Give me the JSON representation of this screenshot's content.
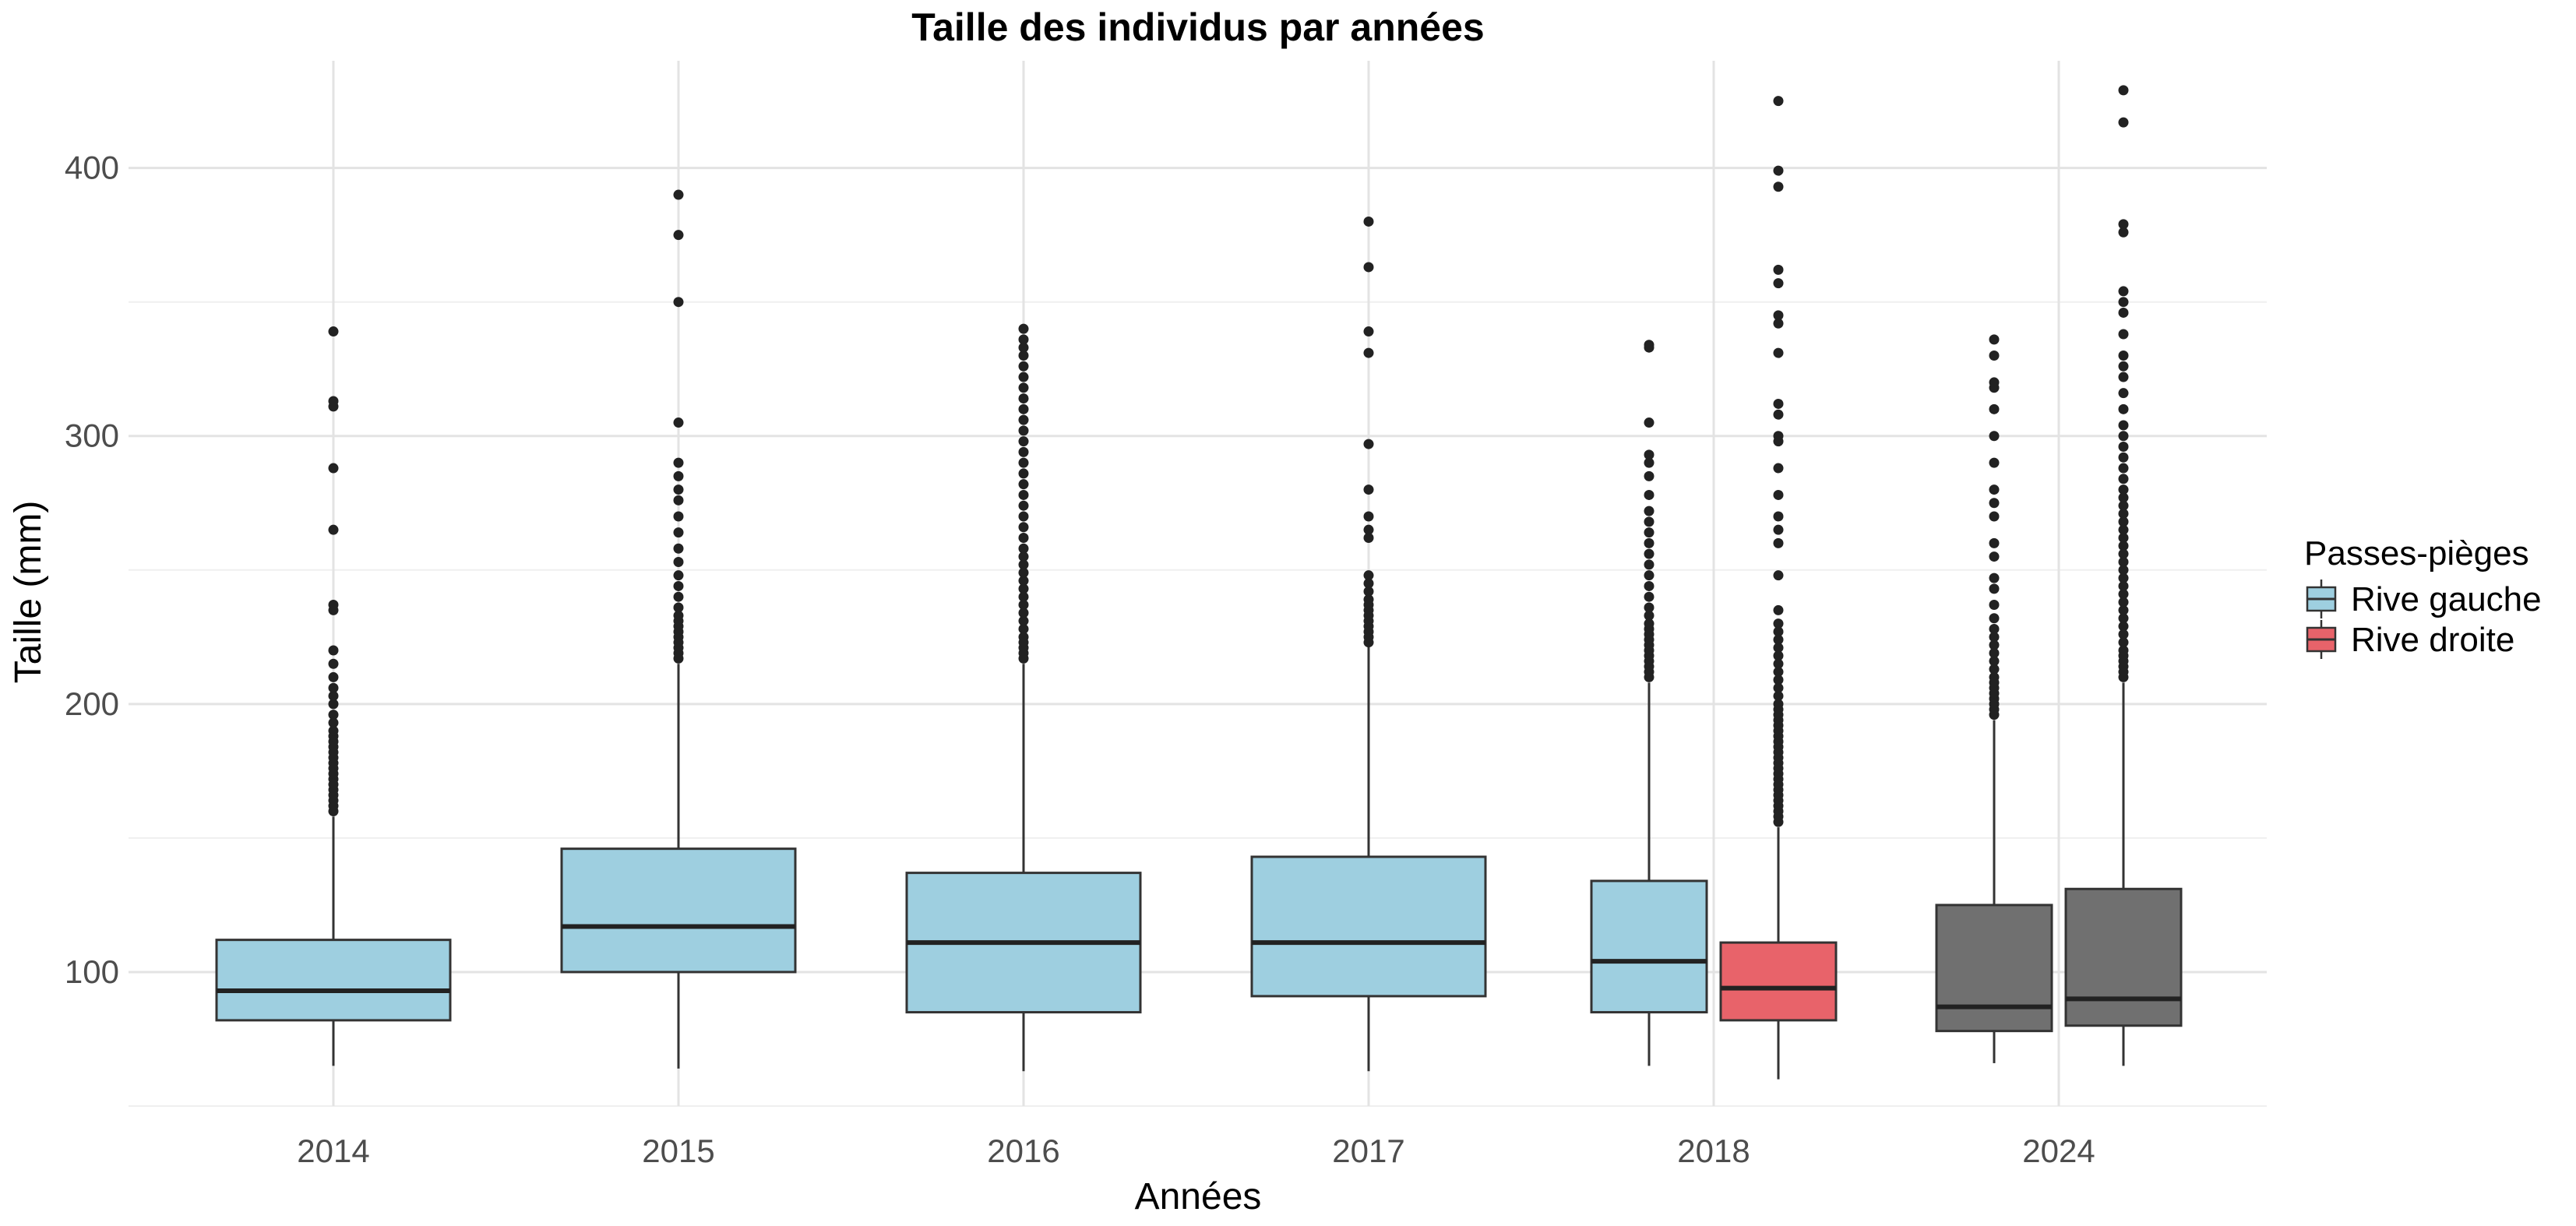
{
  "chart_data": {
    "type": "boxplot",
    "title": "Taille des individus par années",
    "xlabel": "Années",
    "ylabel": "Taille (mm)",
    "ylim": [
      50,
      440
    ],
    "yticks": [
      100,
      200,
      300,
      400
    ],
    "grid": true,
    "categories": [
      "2014",
      "2015",
      "2016",
      "2017",
      "2018",
      "2024"
    ],
    "legend": {
      "title": "Passes-pièges",
      "position": "right",
      "entries": [
        {
          "label": "Rive gauche",
          "color": "#9ecfe0"
        },
        {
          "label": "Rive droite",
          "color": "#e8636a"
        }
      ]
    },
    "colors": {
      "Rive gauche": "#9ecfe0",
      "Rive droite": "#e8636a",
      "NA": "#707070"
    },
    "boxes": [
      {
        "category": "2014",
        "group": "Rive gauche",
        "min": 65,
        "q1": 82,
        "median": 93,
        "q3": 112,
        "max": 158,
        "outliers": [
          160,
          162,
          164,
          166,
          168,
          170,
          172,
          174,
          176,
          178,
          180,
          182,
          184,
          186,
          188,
          190,
          193,
          196,
          200,
          203,
          206,
          210,
          215,
          220,
          235,
          237,
          265,
          288,
          311,
          313,
          339
        ]
      },
      {
        "category": "2015",
        "group": "Rive gauche",
        "min": 64,
        "q1": 100,
        "median": 117,
        "q3": 146,
        "max": 215,
        "outliers": [
          217,
          219,
          221,
          223,
          225,
          227,
          229,
          231,
          233,
          236,
          240,
          244,
          248,
          253,
          258,
          264,
          270,
          276,
          280,
          285,
          290,
          305,
          350,
          375,
          390
        ]
      },
      {
        "category": "2016",
        "group": "Rive gauche",
        "min": 63,
        "q1": 85,
        "median": 111,
        "q3": 137,
        "max": 215,
        "outliers": [
          217,
          219,
          221,
          223,
          225,
          228,
          231,
          234,
          237,
          240,
          243,
          246,
          249,
          252,
          255,
          258,
          262,
          266,
          270,
          274,
          278,
          282,
          286,
          290,
          294,
          298,
          302,
          306,
          310,
          314,
          318,
          322,
          326,
          330,
          333,
          336,
          340
        ]
      },
      {
        "category": "2017",
        "group": "Rive gauche",
        "min": 63,
        "q1": 91,
        "median": 111,
        "q3": 143,
        "max": 222,
        "outliers": [
          223,
          225,
          227,
          229,
          231,
          233,
          235,
          237,
          239,
          242,
          245,
          248,
          262,
          265,
          270,
          280,
          297,
          331,
          339,
          363,
          380
        ]
      },
      {
        "category": "2018",
        "group": "Rive gauche",
        "min": 65,
        "q1": 85,
        "median": 104,
        "q3": 134,
        "max": 208,
        "outliers": [
          210,
          212,
          214,
          216,
          218,
          220,
          222,
          224,
          226,
          228,
          230,
          233,
          236,
          240,
          244,
          248,
          252,
          256,
          260,
          264,
          268,
          272,
          278,
          285,
          290,
          293,
          305,
          333,
          334
        ]
      },
      {
        "category": "2018",
        "group": "Rive droite",
        "min": 60,
        "q1": 82,
        "median": 94,
        "q3": 111,
        "max": 154,
        "outliers": [
          156,
          158,
          160,
          162,
          164,
          166,
          168,
          170,
          172,
          174,
          176,
          178,
          180,
          182,
          184,
          186,
          188,
          190,
          192,
          194,
          196,
          198,
          200,
          203,
          206,
          209,
          212,
          215,
          218,
          221,
          224,
          227,
          230,
          235,
          248,
          260,
          265,
          270,
          278,
          288,
          298,
          300,
          308,
          312,
          331,
          342,
          345,
          357,
          362,
          393,
          399,
          425
        ]
      },
      {
        "category": "2024",
        "group": "NA",
        "min": 66,
        "q1": 78,
        "median": 87,
        "q3": 125,
        "max": 194,
        "outliers": [
          196,
          198,
          200,
          202,
          204,
          206,
          208,
          210,
          213,
          216,
          219,
          222,
          225,
          228,
          232,
          237,
          243,
          247,
          255,
          260,
          270,
          275,
          280,
          290,
          300,
          310,
          318,
          320,
          330,
          336
        ]
      },
      {
        "category": "2024",
        "group": "NA",
        "min": 65,
        "q1": 80,
        "median": 90,
        "q3": 131,
        "max": 208,
        "outliers": [
          210,
          212,
          214,
          216,
          218,
          220,
          223,
          226,
          229,
          232,
          235,
          238,
          241,
          244,
          247,
          250,
          253,
          256,
          259,
          262,
          265,
          268,
          271,
          274,
          277,
          280,
          284,
          288,
          292,
          296,
          300,
          304,
          310,
          316,
          322,
          326,
          330,
          338,
          346,
          350,
          354,
          376,
          379,
          417,
          429
        ]
      }
    ]
  }
}
